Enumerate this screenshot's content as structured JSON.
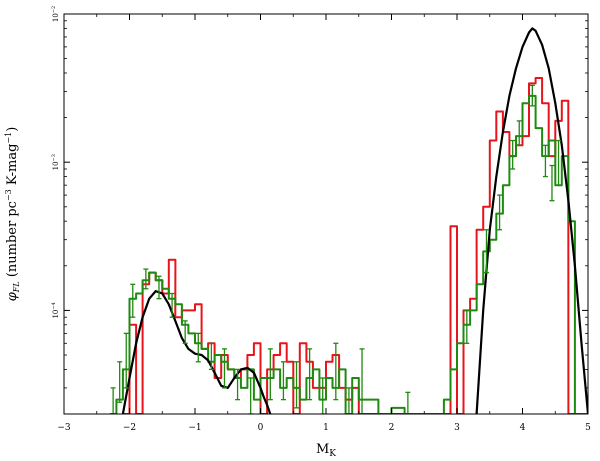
{
  "chart_data": {
    "type": "line",
    "title": "",
    "xlabel": "M",
    "xlabel_sub": "K",
    "ylabel": "φ_FL (number pc^-3 K-mag^-1)",
    "ylabel_parts": {
      "phi": "φ",
      "sub": "FL",
      "text1": " (number pc",
      "sup1": "−3",
      "text2": " K-mag",
      "sup2": "−1",
      "text3": ")"
    },
    "xlim": [
      -3,
      5
    ],
    "ylog": true,
    "ylim": [
      2e-05,
      0.01
    ],
    "x_ticks": [
      -3,
      -2,
      -1,
      0,
      1,
      2,
      3,
      4,
      5
    ],
    "x_tick_labels": [
      "−3",
      "−2",
      "−1",
      "0",
      "1",
      "2",
      "3",
      "4",
      "5"
    ],
    "y_ticks": [
      0.0001,
      0.001,
      0.01
    ],
    "y_tick_labels": [
      {
        "base": "10",
        "exp": "−4"
      },
      {
        "base": "10",
        "exp": "−3"
      },
      {
        "base": "10",
        "exp": "−2"
      }
    ],
    "grid": false,
    "colors": {
      "red": "#e8141c",
      "green": "#1f8a10",
      "black": "#000000"
    },
    "series": [
      {
        "color": "#e8141c",
        "style": "steps",
        "x": [
          -2.1,
          -2.0,
          -1.9,
          -1.8,
          -1.7,
          -1.6,
          -1.5,
          -1.4,
          -1.3,
          -1.2,
          -1.1,
          -1.0,
          -0.9,
          -0.8,
          -0.7,
          -0.6,
          -0.5,
          -0.4,
          -0.3,
          -0.2,
          -0.1,
          0.0,
          0.1,
          0.2,
          0.3,
          0.4,
          0.5,
          0.6,
          0.7,
          0.8,
          0.9,
          1.0,
          1.1,
          1.2,
          1.3,
          1.4,
          1.5,
          1.6,
          1.7,
          1.8,
          1.9,
          2.0,
          2.1,
          2.2,
          2.3,
          2.4,
          2.5,
          2.6,
          2.7,
          2.8,
          2.9,
          3.0,
          3.1,
          3.2,
          3.3,
          3.4,
          3.5,
          3.6,
          3.7,
          3.8,
          3.9,
          4.0,
          4.1,
          4.2,
          4.3,
          4.4,
          4.5,
          4.6,
          4.7,
          4.8,
          4.9
        ],
        "y": [
          2e-05,
          8e-05,
          2e-05,
          0.00015,
          0.00018,
          0.00016,
          0.00013,
          0.00022,
          9e-05,
          0.0001,
          0.0001,
          0.00011,
          5.5e-05,
          6e-05,
          3.5e-05,
          5e-05,
          4e-05,
          3.5e-05,
          4e-05,
          5e-05,
          6e-05,
          2e-05,
          4e-05,
          5e-05,
          6e-05,
          4.5e-05,
          2e-05,
          6e-05,
          4.5e-05,
          3e-05,
          3e-05,
          4.5e-05,
          5e-05,
          3e-05,
          2.5e-05,
          3e-05,
          2e-05,
          2e-05,
          2e-05,
          2e-05,
          2e-05,
          2e-05,
          2e-05,
          2e-05,
          2e-05,
          2e-05,
          2e-05,
          2e-05,
          2e-05,
          2e-05,
          0.00037,
          2e-05,
          0.0001,
          0.00012,
          0.00035,
          0.0005,
          0.0014,
          0.0022,
          0.0016,
          0.0011,
          0.0013,
          0.0015,
          0.0034,
          0.0037,
          0.0025,
          0.0011,
          0.0019,
          0.0026,
          2e-05,
          2e-05,
          2e-05
        ]
      },
      {
        "color": "#1f8a10",
        "style": "steps",
        "x": [
          -2.3,
          -2.2,
          -2.1,
          -2.0,
          -1.9,
          -1.8,
          -1.7,
          -1.6,
          -1.5,
          -1.4,
          -1.3,
          -1.2,
          -1.1,
          -1.0,
          -0.9,
          -0.8,
          -0.7,
          -0.6,
          -0.5,
          -0.4,
          -0.3,
          -0.2,
          -0.1,
          0.0,
          0.1,
          0.2,
          0.3,
          0.4,
          0.5,
          0.6,
          0.7,
          0.8,
          0.9,
          1.0,
          1.1,
          1.2,
          1.3,
          1.4,
          1.5,
          1.6,
          1.7,
          1.8,
          1.9,
          2.0,
          2.1,
          2.2,
          2.3,
          2.4,
          2.5,
          2.6,
          2.7,
          2.8,
          2.9,
          3.0,
          3.1,
          3.2,
          3.3,
          3.4,
          3.5,
          3.6,
          3.7,
          3.8,
          3.9,
          4.0,
          4.1,
          4.2,
          4.3,
          4.4,
          4.5,
          4.6,
          4.7,
          4.8,
          4.9
        ],
        "y": [
          2e-05,
          2.5e-05,
          4e-05,
          0.00012,
          0.00013,
          0.00016,
          0.00018,
          0.00016,
          0.00014,
          0.00012,
          0.00011,
          8e-05,
          7e-05,
          6e-05,
          5.5e-05,
          4.5e-05,
          5e-05,
          4.5e-05,
          4e-05,
          3.5e-05,
          3e-05,
          4e-05,
          2.5e-05,
          3.5e-05,
          3.5e-05,
          4e-05,
          3e-05,
          3.5e-05,
          3e-05,
          2.5e-05,
          3.5e-05,
          4e-05,
          2.5e-05,
          3.5e-05,
          3e-05,
          4e-05,
          2e-05,
          3.5e-05,
          2.5e-05,
          2.5e-05,
          2.5e-05,
          2e-05,
          2e-05,
          2.2e-05,
          2.2e-05,
          2e-05,
          2e-05,
          2e-05,
          2e-05,
          2e-05,
          2e-05,
          2.5e-05,
          4e-05,
          6e-05,
          8e-05,
          0.0001,
          0.00015,
          0.00025,
          0.0003,
          0.00045,
          0.0007,
          0.0011,
          0.0015,
          0.0025,
          0.0028,
          0.0017,
          0.0011,
          0.0014,
          0.0007,
          0.0011,
          0.0004,
          2e-05,
          2e-05
        ]
      },
      {
        "color": "#000000",
        "style": "line",
        "x": [
          -2.1,
          -2.0,
          -1.9,
          -1.8,
          -1.7,
          -1.6,
          -1.5,
          -1.4,
          -1.3,
          -1.2,
          -1.1,
          -1.0,
          -0.9,
          -0.8,
          -0.7,
          -0.6,
          -0.5,
          -0.4,
          -0.3,
          -0.2,
          -0.1,
          0.0,
          0.05,
          0.1,
          0.15,
          3.3,
          3.4,
          3.5,
          3.6,
          3.7,
          3.8,
          3.9,
          4.0,
          4.1,
          4.15,
          4.2,
          4.3,
          4.4,
          4.5,
          4.6,
          4.7,
          4.8,
          4.9,
          5.0
        ],
        "y": [
          2e-05,
          3.5e-05,
          6e-05,
          9e-05,
          0.00012,
          0.000135,
          0.00013,
          0.00011,
          8.5e-05,
          6.5e-05,
          5.5e-05,
          5.1e-05,
          5e-05,
          4.6e-05,
          3.8e-05,
          3.1e-05,
          3e-05,
          3.5e-05,
          4e-05,
          4.1e-05,
          3.8e-05,
          3e-05,
          2.6e-05,
          2.3e-05,
          2e-05,
          2e-05,
          0.0001,
          0.00035,
          0.0008,
          0.0016,
          0.0028,
          0.0043,
          0.006,
          0.0075,
          0.008,
          0.0077,
          0.0062,
          0.0043,
          0.0025,
          0.0013,
          0.00055,
          0.0002,
          6e-05,
          2e-05
        ]
      }
    ],
    "error_bars": [
      {
        "x": -2.25,
        "lo": 2e-05,
        "hi": 3e-05
      },
      {
        "x": -2.15,
        "lo": 2.4e-05,
        "hi": 4.5e-05
      },
      {
        "x": -2.05,
        "lo": 3e-05,
        "hi": 7e-05
      },
      {
        "x": -1.95,
        "lo": 9e-05,
        "hi": 0.00015
      },
      {
        "x": -1.75,
        "lo": 0.00014,
        "hi": 0.00019
      },
      {
        "x": -1.55,
        "lo": 0.00012,
        "hi": 0.00017
      },
      {
        "x": -1.35,
        "lo": 9e-05,
        "hi": 0.00013
      },
      {
        "x": -1.15,
        "lo": 6e-05,
        "hi": 8.5e-05
      },
      {
        "x": -0.95,
        "lo": 4.5e-05,
        "hi": 7e-05
      },
      {
        "x": -0.75,
        "lo": 4e-05,
        "hi": 6e-05
      },
      {
        "x": -0.55,
        "lo": 3e-05,
        "hi": 5.5e-05
      },
      {
        "x": -0.35,
        "lo": 2.5e-05,
        "hi": 4e-05
      },
      {
        "x": -0.15,
        "lo": 2e-05,
        "hi": 3.5e-05
      },
      {
        "x": 0.15,
        "lo": 2.5e-05,
        "hi": 5.5e-05
      },
      {
        "x": 0.35,
        "lo": 2.5e-05,
        "hi": 4.5e-05
      },
      {
        "x": 0.55,
        "lo": 2.2e-05,
        "hi": 4.5e-05
      },
      {
        "x": 0.75,
        "lo": 2.5e-05,
        "hi": 5.5e-05
      },
      {
        "x": 0.95,
        "lo": 2e-05,
        "hi": 3.5e-05
      },
      {
        "x": 1.15,
        "lo": 2.5e-05,
        "hi": 6e-05
      },
      {
        "x": 1.35,
        "lo": 2e-05,
        "hi": 3e-05
      },
      {
        "x": 1.55,
        "lo": 2e-05,
        "hi": 5.5e-05
      },
      {
        "x": 2.25,
        "lo": 2e-05,
        "hi": 2.8e-05
      },
      {
        "x": 3.15,
        "lo": 6e-05,
        "hi": 0.0001
      },
      {
        "x": 3.45,
        "lo": 0.00018,
        "hi": 0.00035
      },
      {
        "x": 3.65,
        "lo": 0.00035,
        "hi": 0.0006
      },
      {
        "x": 3.85,
        "lo": 0.0009,
        "hi": 0.0014
      },
      {
        "x": 3.95,
        "lo": 0.0013,
        "hi": 0.0019
      },
      {
        "x": 4.15,
        "lo": 0.0024,
        "hi": 0.0033
      },
      {
        "x": 4.35,
        "lo": 0.0008,
        "hi": 0.0013
      },
      {
        "x": 4.45,
        "lo": 0.00055,
        "hi": 0.00095
      },
      {
        "x": 4.55,
        "lo": 0.0007,
        "hi": 0.0014
      }
    ]
  }
}
